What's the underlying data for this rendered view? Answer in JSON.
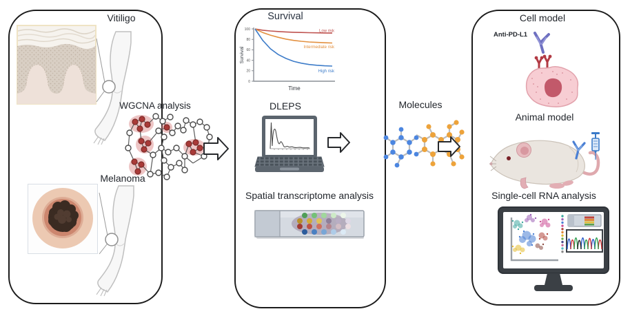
{
  "figure": {
    "left_panel": {
      "vitiligo_label": "Vitiligo",
      "melanoma_label": "Melanoma",
      "wgcna_label": "WGCNA analysis"
    },
    "middle_panel": {
      "survival_title": "Survival",
      "dleps_label": "DLEPS",
      "spatial_label": "Spatial transcriptome analysis"
    },
    "molecules_label": "Molecules",
    "right_panel": {
      "cell_model_label": "Cell model",
      "anti_pdl1_label": "Anti-PD-L1",
      "animal_model_label": "Animal model",
      "single_cell_label": "Single-cell RNA analysis"
    }
  },
  "chart_data": {
    "type": "line",
    "title": "Survival",
    "xlabel": "Time",
    "ylabel": "Survival",
    "ylim": [
      0,
      100
    ],
    "yticks": [
      100,
      80,
      60,
      40,
      20,
      0
    ],
    "grid": false,
    "legend_position": "on-curve",
    "x": [
      0,
      1,
      2,
      3,
      4,
      5,
      6,
      7,
      8,
      9,
      10
    ],
    "series": [
      {
        "name": "Low risk",
        "color": "#bf5350",
        "values": [
          100,
          97.5,
          96,
          95,
          94.2,
          93.6,
          93.2,
          92.8,
          92.5,
          92.3,
          92
        ]
      },
      {
        "name": "Intermediate risk",
        "color": "#e3903f",
        "values": [
          100,
          93,
          88,
          84,
          80.5,
          78,
          76.3,
          75,
          74.2,
          73.5,
          73
        ]
      },
      {
        "name": "High risk",
        "color": "#3d7cc9",
        "values": [
          100,
          78,
          62,
          51,
          43.5,
          38,
          34.5,
          32,
          30.5,
          29.5,
          29
        ]
      }
    ]
  },
  "icons": {
    "skin-cross-section-icon": "layered skin tissue illustration",
    "arm-icon": "human arm with magnifier callout",
    "melanoma-lesion-icon": "dark mole on skin circle",
    "gene-network-icon": "node-link network with red WGCNA modules",
    "block-arrow-icon": "hollow right-pointing arrow",
    "laptop-icon": "laptop showing prediction spectrum plot",
    "tissue-slide-icon": "microscope slide with spatial transcriptome spots",
    "molecule-icon": "ball-and-stick small molecules",
    "antibody-icon": "Y-shaped antibody",
    "pdl1-receptor-icon": "red PD-L1 surface receptors",
    "tumor-cell-icon": "pink cell with nucleus",
    "mouse-icon": "laboratory mouse",
    "syringe-icon": "syringe",
    "monitor-icon": "monitor with t-SNE clusters and sequencing trace"
  },
  "colors": {
    "panel_border": "#1c1c1c",
    "low_risk": "#bf5350",
    "intermediate_risk": "#e3903f",
    "high_risk": "#3d7cc9",
    "network_module_red": "#a93a38",
    "molecule_blue": "#4c86e0",
    "molecule_orange": "#eda33b",
    "antibody_purple": "#6e70c0",
    "receptor_red": "#b23a44",
    "antibody_blue": "#4a7fd4"
  }
}
